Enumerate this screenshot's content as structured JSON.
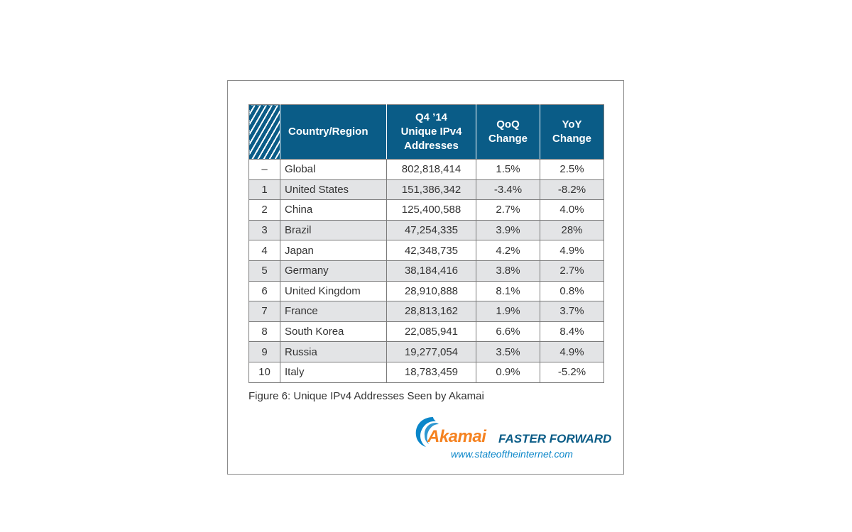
{
  "chart_data": {
    "type": "table",
    "columns": [
      "",
      "Country/Region",
      "Q4 ’14\nUnique IPv4\nAddresses",
      "QoQ\nChange",
      "YoY\nChange"
    ],
    "rows": [
      {
        "rank": "–",
        "country": "Global",
        "addresses": "802,818,414",
        "qoq": "1.5%",
        "yoy": "2.5%"
      },
      {
        "rank": "1",
        "country": "United States",
        "addresses": "151,386,342",
        "qoq": "-3.4%",
        "yoy": "-8.2%"
      },
      {
        "rank": "2",
        "country": "China",
        "addresses": "125,400,588",
        "qoq": "2.7%",
        "yoy": "4.0%"
      },
      {
        "rank": "3",
        "country": "Brazil",
        "addresses": "47,254,335",
        "qoq": "3.9%",
        "yoy": "28%"
      },
      {
        "rank": "4",
        "country": "Japan",
        "addresses": "42,348,735",
        "qoq": "4.2%",
        "yoy": "4.9%"
      },
      {
        "rank": "5",
        "country": "Germany",
        "addresses": "38,184,416",
        "qoq": "3.8%",
        "yoy": "2.7%"
      },
      {
        "rank": "6",
        "country": "United Kingdom",
        "addresses": "28,910,888",
        "qoq": "8.1%",
        "yoy": "0.8%"
      },
      {
        "rank": "7",
        "country": "France",
        "addresses": "28,813,162",
        "qoq": "1.9%",
        "yoy": "3.7%"
      },
      {
        "rank": "8",
        "country": "South Korea",
        "addresses": "22,085,941",
        "qoq": "6.6%",
        "yoy": "8.4%"
      },
      {
        "rank": "9",
        "country": "Russia",
        "addresses": "19,277,054",
        "qoq": "3.5%",
        "yoy": "4.9%"
      },
      {
        "rank": "10",
        "country": "Italy",
        "addresses": "18,783,459",
        "qoq": "0.9%",
        "yoy": "-5.2%"
      }
    ],
    "caption": "Figure 6: Unique IPv4 Addresses Seen by Akamai",
    "header_color": "#0a5c87",
    "stripe_color": "#e3e4e6"
  },
  "logo": {
    "brand": "Akamai",
    "tagline": "FASTER FORWARD",
    "url": "www.stateoftheinternet.com",
    "brand_color": "#f58220",
    "tagline_color": "#0a5c87",
    "url_color": "#0a86c9"
  }
}
